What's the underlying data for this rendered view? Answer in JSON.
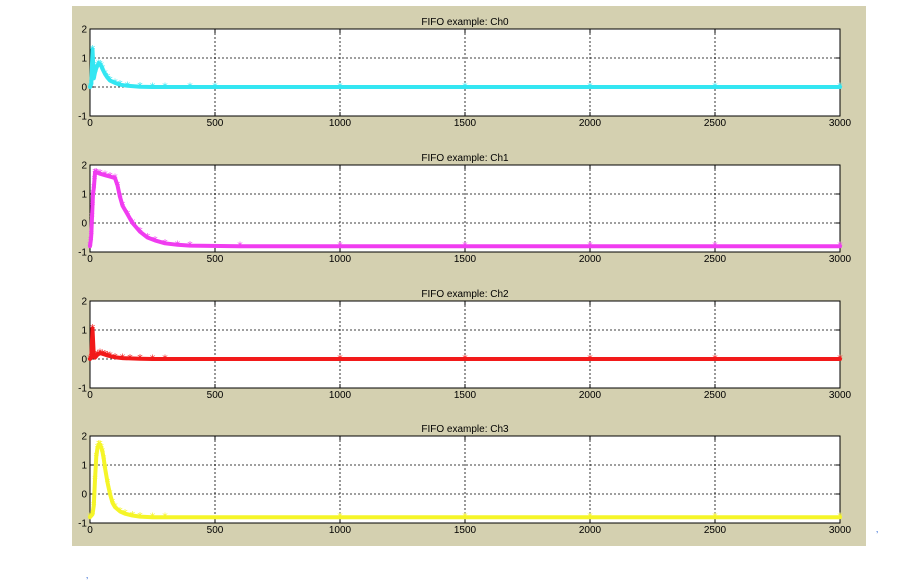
{
  "chart_data": [
    {
      "type": "line",
      "title": "FIFO example: Ch0",
      "color": "#33e6f2",
      "marker": "*",
      "xlim": [
        0,
        3000
      ],
      "ylim": [
        -1,
        2
      ],
      "xticks": [
        0,
        500,
        1000,
        1500,
        2000,
        2500,
        3000
      ],
      "yticks": [
        -1,
        0,
        1,
        2
      ],
      "grid": true,
      "series": [
        {
          "x": [
            0,
            5,
            10,
            15,
            20,
            25,
            30,
            35,
            40,
            45,
            50,
            60,
            70,
            80,
            100,
            120,
            150,
            200,
            250,
            300,
            400,
            500,
            1000,
            1500,
            2000,
            2500,
            3000
          ],
          "y": [
            0,
            0.1,
            1.3,
            0.3,
            0.5,
            0.65,
            0.75,
            0.8,
            0.78,
            0.72,
            0.62,
            0.45,
            0.32,
            0.22,
            0.14,
            0.08,
            0.04,
            0.01,
            0,
            0,
            0,
            0,
            0,
            0,
            0,
            0,
            0
          ]
        }
      ]
    },
    {
      "type": "line",
      "title": "FIFO example: Ch1",
      "color": "#f03cf0",
      "marker": "*",
      "xlim": [
        0,
        3000
      ],
      "ylim": [
        -1,
        2
      ],
      "xticks": [
        0,
        500,
        1000,
        1500,
        2000,
        2500,
        3000
      ],
      "yticks": [
        -1,
        0,
        1,
        2
      ],
      "grid": true,
      "series": [
        {
          "x": [
            0,
            3,
            5,
            8,
            10,
            12,
            15,
            18,
            20,
            25,
            40,
            60,
            80,
            100,
            110,
            120,
            130,
            150,
            170,
            200,
            230,
            260,
            300,
            350,
            400,
            600,
            1000,
            1500,
            2000,
            2500,
            3000
          ],
          "y": [
            -0.8,
            -0.6,
            -0.4,
            0.2,
            0.6,
            1.0,
            1.2,
            1.5,
            1.75,
            1.75,
            1.7,
            1.65,
            1.6,
            1.55,
            1.3,
            0.9,
            0.6,
            0.3,
            0.0,
            -0.3,
            -0.5,
            -0.6,
            -0.7,
            -0.75,
            -0.78,
            -0.8,
            -0.8,
            -0.8,
            -0.8,
            -0.8,
            -0.8
          ]
        }
      ]
    },
    {
      "type": "line",
      "title": "FIFO example: Ch2",
      "color": "#f21a1a",
      "marker": "*",
      "xlim": [
        0,
        3000
      ],
      "ylim": [
        -1,
        2
      ],
      "xticks": [
        0,
        500,
        1000,
        1500,
        2000,
        2500,
        3000
      ],
      "yticks": [
        -1,
        0,
        1,
        2
      ],
      "grid": true,
      "series": [
        {
          "x": [
            0,
            5,
            10,
            15,
            20,
            25,
            30,
            40,
            50,
            60,
            70,
            80,
            100,
            130,
            160,
            200,
            250,
            300,
            1000,
            1500,
            2000,
            2500,
            3000
          ],
          "y": [
            0,
            0.05,
            1.05,
            0.1,
            0.05,
            0.1,
            0.15,
            0.2,
            0.18,
            0.15,
            0.12,
            0.1,
            0.06,
            0.03,
            0.02,
            0.01,
            0,
            0,
            0,
            0,
            0,
            0,
            0
          ]
        }
      ]
    },
    {
      "type": "line",
      "title": "FIFO example: Ch3",
      "color": "#f5f528",
      "marker": "*",
      "xlim": [
        0,
        3000
      ],
      "ylim": [
        -1,
        2
      ],
      "xticks": [
        0,
        500,
        1000,
        1500,
        2000,
        2500,
        3000
      ],
      "yticks": [
        -1,
        0,
        1,
        2
      ],
      "grid": true,
      "series": [
        {
          "x": [
            0,
            10,
            15,
            20,
            25,
            30,
            35,
            40,
            45,
            50,
            55,
            60,
            70,
            80,
            90,
            100,
            120,
            140,
            170,
            200,
            250,
            300,
            1000,
            1500,
            2000,
            2500,
            3000
          ],
          "y": [
            -0.8,
            -0.7,
            -0.4,
            0.5,
            1.3,
            1.6,
            1.7,
            1.7,
            1.6,
            1.45,
            1.2,
            0.9,
            0.4,
            0.0,
            -0.3,
            -0.45,
            -0.6,
            -0.68,
            -0.74,
            -0.78,
            -0.8,
            -0.8,
            -0.8,
            -0.8,
            -0.8,
            -0.8,
            -0.8
          ]
        }
      ]
    }
  ],
  "stray_marks": [
    "’",
    "’"
  ]
}
